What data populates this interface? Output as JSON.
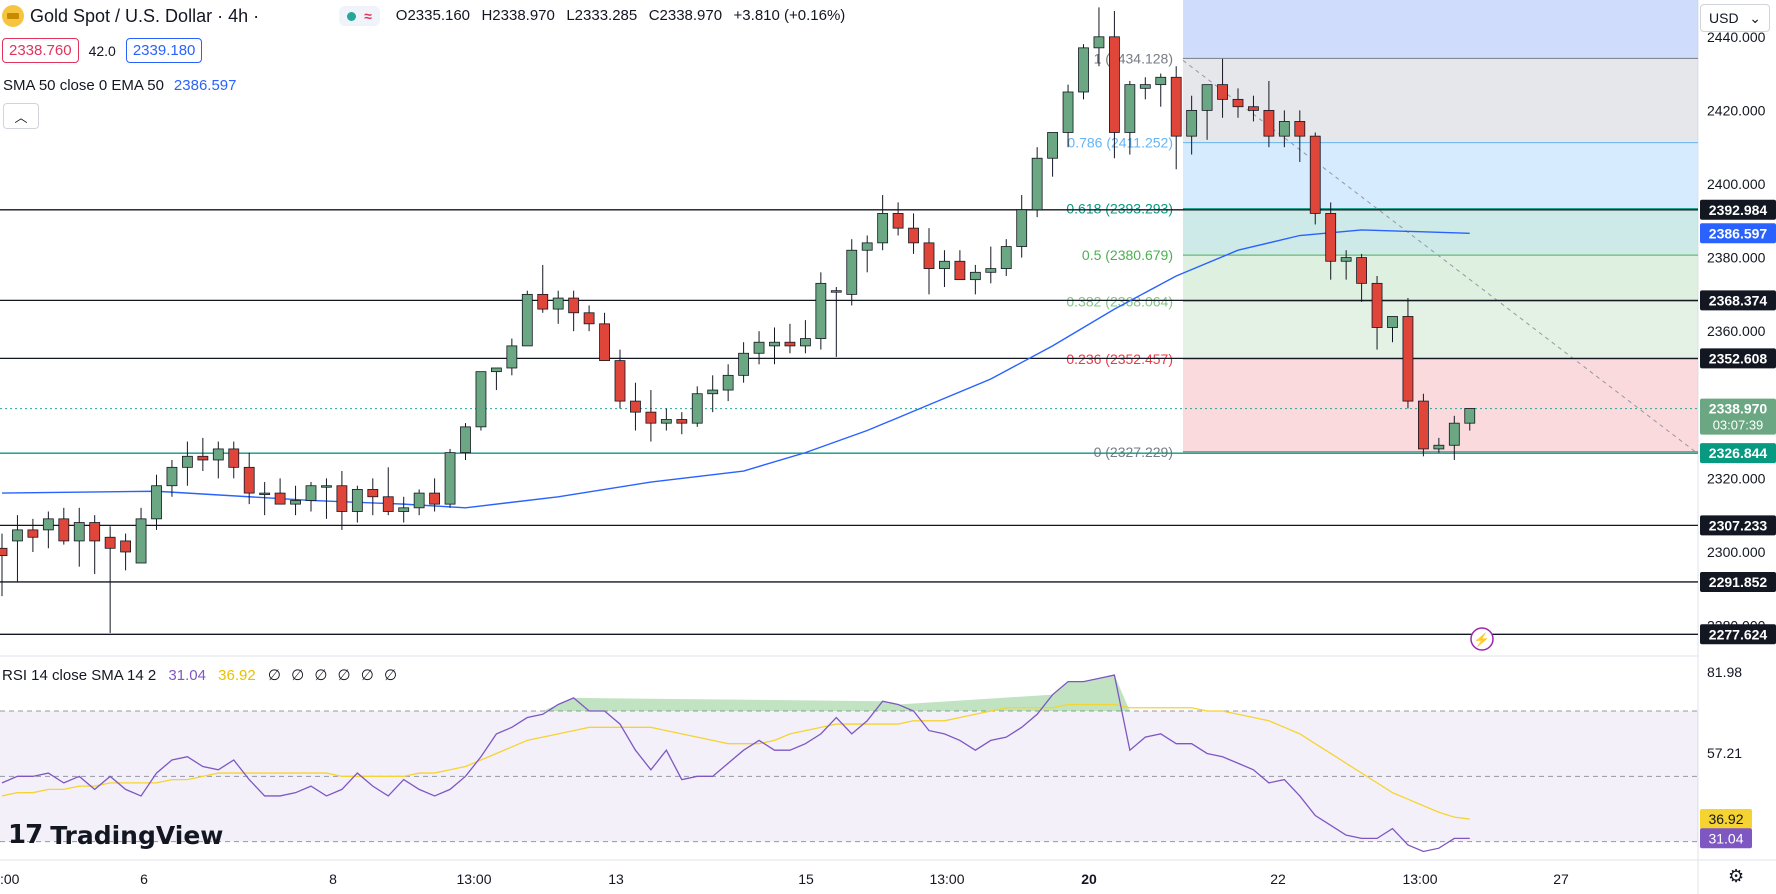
{
  "header": {
    "symbol_title": "Gold Spot / U.S. Dollar · 4h ·",
    "ohlc": {
      "open": "O2335.160",
      "high": "H2338.970",
      "low": "L2333.285",
      "close": "C2338.970",
      "change": "+3.810 (+0.16%)"
    },
    "bid": "2338.760",
    "spread": "42.0",
    "ask": "2339.180",
    "indicator_label": "SMA 50 close 0 EMA 50",
    "indicator_value": "2386.597",
    "colors": {
      "up": "#26a69a",
      "down": "#e0345b",
      "accent": "#2962ff"
    }
  },
  "currency": "USD",
  "rsi_legend": {
    "label": "RSI 14 close SMA 14 2",
    "rsi_value": "31.04",
    "sma_value": "36.92",
    "zeros": "∅ ∅ ∅ ∅ ∅ ∅"
  },
  "brand": "TradingView",
  "chart_data": {
    "type": "candlestick",
    "price_axis": {
      "ticks": [
        "2440.000",
        "2420.000",
        "2400.000",
        "2380.000",
        "2360.000",
        "2340.000",
        "2320.000",
        "2300.000",
        "2280.000"
      ],
      "ylim": [
        2272,
        2450
      ]
    },
    "time_axis": [
      ":00",
      "6",
      "8",
      "13:00",
      "13",
      "15",
      "13:00",
      "20",
      "22",
      "13:00",
      "27"
    ],
    "current_price": {
      "value": 2338.97,
      "label": "2338.970",
      "countdown": "03:07:39"
    },
    "horizontal_levels": [
      {
        "value": 2392.984,
        "label": "2392.984"
      },
      {
        "value": 2368.374,
        "label": "2368.374"
      },
      {
        "value": 2352.608,
        "label": "2352.608"
      },
      {
        "value": 2326.844,
        "label": "2326.844"
      },
      {
        "value": 2307.233,
        "label": "2307.233"
      },
      {
        "value": 2291.852,
        "label": "2291.852"
      },
      {
        "value": 2277.624,
        "label": "2277.624"
      }
    ],
    "sma50_label": {
      "value": 2386.597,
      "label": "2386.597"
    },
    "fibonacci": [
      {
        "value": 2434.128,
        "label": "1 (2434.128)",
        "color": "#787b86"
      },
      {
        "value": 2411.252,
        "label": "0.786 (2411.252)",
        "color": "#64b5f6"
      },
      {
        "value": 2393.293,
        "label": "0.618 (2393.293)",
        "color": "#089981"
      },
      {
        "value": 2380.679,
        "label": "0.5 (2380.679)",
        "color": "#4caf50"
      },
      {
        "value": 2368.064,
        "label": "0.382 (2368.064)",
        "color": "#81c784"
      },
      {
        "value": 2352.457,
        "label": "0.236 (2352.457)",
        "color": "#f23645"
      },
      {
        "value": 2327.229,
        "label": "0 (2327.229)",
        "color": "#787b86"
      }
    ],
    "candles": [
      [
        2301,
        2305,
        2288,
        2299
      ],
      [
        2303,
        2310,
        2292,
        2306
      ],
      [
        2306,
        2309,
        2300,
        2304
      ],
      [
        2306,
        2311,
        2301,
        2309
      ],
      [
        2309,
        2312,
        2302,
        2303
      ],
      [
        2303,
        2312,
        2296,
        2308
      ],
      [
        2308,
        2310,
        2294,
        2303
      ],
      [
        2304,
        2307,
        2278,
        2301
      ],
      [
        2303,
        2305,
        2295,
        2300
      ],
      [
        2297,
        2312,
        2297,
        2309
      ],
      [
        2309,
        2321,
        2306,
        2318
      ],
      [
        2318,
        2325,
        2315,
        2323
      ],
      [
        2323,
        2330,
        2318,
        2326
      ],
      [
        2326,
        2331,
        2322,
        2325
      ],
      [
        2325,
        2330,
        2320,
        2328
      ],
      [
        2328,
        2330,
        2320,
        2323
      ],
      [
        2323,
        2327,
        2313,
        2316
      ],
      [
        2316,
        2319,
        2310,
        2316
      ],
      [
        2316,
        2320,
        2313,
        2313
      ],
      [
        2313,
        2318,
        2310,
        2314
      ],
      [
        2314,
        2319,
        2311,
        2318
      ],
      [
        2318,
        2320,
        2309,
        2318
      ],
      [
        2318,
        2322,
        2306,
        2311
      ],
      [
        2311,
        2318,
        2308,
        2317
      ],
      [
        2317,
        2320,
        2310,
        2315
      ],
      [
        2315,
        2323,
        2310,
        2311
      ],
      [
        2311,
        2315,
        2308,
        2312
      ],
      [
        2312,
        2317,
        2310,
        2316
      ],
      [
        2316,
        2320,
        2311,
        2313
      ],
      [
        2313,
        2328,
        2312,
        2327
      ],
      [
        2327,
        2335,
        2325,
        2334
      ],
      [
        2334,
        2349,
        2333,
        2349
      ],
      [
        2349,
        2350,
        2344,
        2350
      ],
      [
        2350,
        2358,
        2348,
        2356
      ],
      [
        2356,
        2371,
        2356,
        2370
      ],
      [
        2370,
        2378,
        2365,
        2366
      ],
      [
        2366,
        2371,
        2362,
        2369
      ],
      [
        2369,
        2371,
        2360,
        2365
      ],
      [
        2365,
        2367,
        2360,
        2362
      ],
      [
        2362,
        2365,
        2352,
        2352
      ],
      [
        2352,
        2355,
        2339,
        2341
      ],
      [
        2341,
        2346,
        2333,
        2338
      ],
      [
        2338,
        2344,
        2330,
        2335
      ],
      [
        2335,
        2339,
        2333,
        2336
      ],
      [
        2336,
        2338,
        2332,
        2335
      ],
      [
        2335,
        2345,
        2334,
        2343
      ],
      [
        2343,
        2348,
        2338,
        2344
      ],
      [
        2344,
        2351,
        2341,
        2348
      ],
      [
        2348,
        2357,
        2346,
        2354
      ],
      [
        2354,
        2360,
        2351,
        2357
      ],
      [
        2356,
        2361,
        2351,
        2357
      ],
      [
        2357,
        2362,
        2354,
        2356
      ],
      [
        2356,
        2363,
        2354,
        2358
      ],
      [
        2358,
        2376,
        2355,
        2373
      ],
      [
        2371,
        2372,
        2353,
        2371
      ],
      [
        2370,
        2385,
        2367,
        2382
      ],
      [
        2382,
        2386,
        2376,
        2384
      ],
      [
        2384,
        2397,
        2382,
        2392
      ],
      [
        2392,
        2395,
        2386,
        2388
      ],
      [
        2388,
        2392,
        2381,
        2384
      ],
      [
        2384,
        2388,
        2370,
        2377
      ],
      [
        2377,
        2382,
        2372,
        2379
      ],
      [
        2379,
        2382,
        2374,
        2374
      ],
      [
        2374,
        2378,
        2370,
        2376
      ],
      [
        2376,
        2383,
        2373,
        2377
      ],
      [
        2377,
        2385,
        2375,
        2383
      ],
      [
        2383,
        2397,
        2380,
        2393
      ],
      [
        2393,
        2410,
        2391,
        2407
      ],
      [
        2407,
        2414,
        2402,
        2414
      ],
      [
        2414,
        2427,
        2410,
        2425
      ],
      [
        2425,
        2438,
        2423,
        2437
      ],
      [
        2437,
        2448,
        2432,
        2440
      ],
      [
        2440,
        2447,
        2407,
        2414
      ],
      [
        2414,
        2428,
        2408,
        2427
      ],
      [
        2426,
        2429,
        2423,
        2427
      ],
      [
        2427,
        2430,
        2421,
        2429
      ],
      [
        2429,
        2432,
        2404,
        2413
      ],
      [
        2413,
        2424,
        2408,
        2420
      ],
      [
        2420,
        2427,
        2412,
        2427
      ],
      [
        2427,
        2434,
        2418,
        2423
      ],
      [
        2423,
        2426,
        2418,
        2421
      ],
      [
        2421,
        2424,
        2417,
        2420
      ],
      [
        2420,
        2428,
        2410,
        2413
      ],
      [
        2413,
        2420,
        2410,
        2417
      ],
      [
        2417,
        2420,
        2406,
        2413
      ],
      [
        2413,
        2414,
        2389,
        2392
      ],
      [
        2392,
        2395,
        2374,
        2379
      ],
      [
        2379,
        2382,
        2374,
        2380
      ],
      [
        2380,
        2381,
        2368,
        2373
      ],
      [
        2373,
        2375,
        2355,
        2361
      ],
      [
        2361,
        2364,
        2357,
        2364
      ],
      [
        2364,
        2369,
        2339,
        2341
      ],
      [
        2341,
        2343,
        2326,
        2328
      ],
      [
        2328,
        2331,
        2327,
        2329
      ],
      [
        2329,
        2337,
        2325,
        2335
      ],
      [
        2335,
        2339,
        2333,
        2339
      ]
    ],
    "sma50": [
      [
        0,
        2316
      ],
      [
        10,
        2316.5
      ],
      [
        20,
        2314
      ],
      [
        26,
        2313
      ],
      [
        30,
        2312
      ],
      [
        36,
        2315
      ],
      [
        42,
        2319
      ],
      [
        48,
        2322
      ],
      [
        52,
        2327
      ],
      [
        56,
        2333
      ],
      [
        60,
        2340
      ],
      [
        64,
        2347
      ],
      [
        68,
        2356
      ],
      [
        72,
        2366
      ],
      [
        76,
        2375
      ],
      [
        80,
        2382
      ],
      [
        84,
        2386
      ],
      [
        88,
        2387.5
      ],
      [
        92,
        2387
      ],
      [
        95,
        2386.597
      ]
    ],
    "rsi": {
      "ylim": [
        25,
        85
      ],
      "tick_labels": [
        "81.98",
        "57.21"
      ],
      "band_levels": [
        70,
        50,
        30
      ],
      "rsi_values": [
        48,
        50,
        50,
        51,
        48,
        50,
        46,
        50,
        46,
        44,
        51,
        55,
        56,
        53,
        52,
        55,
        49,
        44,
        44,
        45,
        47,
        44,
        46,
        51,
        47,
        44,
        49,
        46,
        44,
        46,
        50,
        56,
        63,
        65,
        68,
        69,
        72,
        74,
        70,
        70,
        66,
        58,
        52,
        58,
        49,
        50,
        50,
        54,
        58,
        61,
        58,
        58,
        60,
        63,
        68,
        63,
        67,
        73,
        72,
        70,
        64,
        63,
        61,
        58,
        61,
        62,
        65,
        69,
        75,
        79,
        79,
        80,
        81,
        58,
        62,
        63,
        60,
        60,
        57,
        56,
        54,
        52,
        48,
        49,
        44,
        38,
        35,
        32,
        31,
        31,
        34,
        29,
        27,
        28,
        31,
        31
      ],
      "sma_values": [
        44,
        45,
        45,
        46,
        46,
        47,
        47,
        48,
        48,
        48,
        48,
        49,
        49,
        50,
        51,
        51,
        51,
        51,
        51,
        51,
        51,
        51,
        50,
        50,
        50,
        50,
        50,
        51,
        51,
        52,
        53,
        55,
        57,
        59,
        61,
        62,
        63,
        64,
        65,
        65,
        65,
        65,
        65,
        64,
        63,
        62,
        61,
        60,
        60,
        60,
        61,
        63,
        64,
        65,
        66,
        66,
        66,
        66,
        66,
        67,
        67,
        67,
        68,
        69,
        70,
        71,
        71,
        71,
        71,
        72,
        72,
        72,
        72,
        71,
        71,
        71,
        71,
        71,
        70,
        70,
        69,
        68,
        67,
        65,
        63,
        60,
        57,
        54,
        51,
        48,
        45,
        43,
        41,
        39,
        37.5,
        36.92
      ],
      "current_labels": [
        {
          "value": 36.92,
          "label": "36.92"
        },
        {
          "value": 31.04,
          "label": "31.04"
        }
      ]
    }
  }
}
